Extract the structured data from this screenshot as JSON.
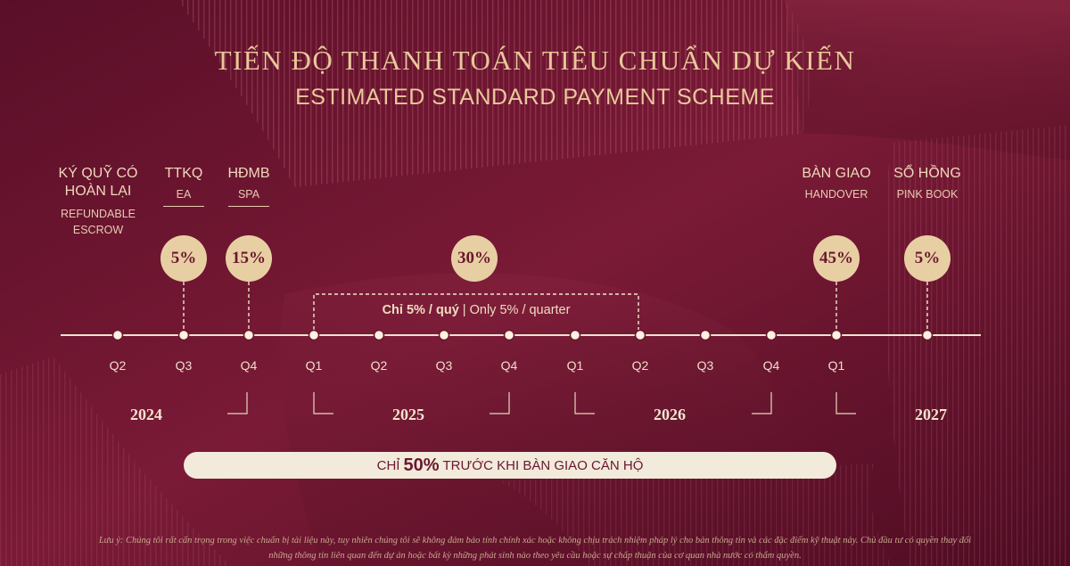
{
  "title": {
    "vi": "TIẾN ĐỘ THANH TOÁN TIÊU CHUẨN DỰ KIẾN",
    "en": "ESTIMATED STANDARD PAYMENT SCHEME"
  },
  "milestones": {
    "escrow": {
      "vi_line1": "KÝ QUỸ CÓ",
      "vi_line2": "HOÀN LẠI",
      "en_line1": "REFUNDABLE",
      "en_line2": "ESCROW"
    },
    "ttkq": {
      "vi": "TTKQ",
      "en": "EA",
      "pct": "5%"
    },
    "hdmb": {
      "vi": "HĐMB",
      "en": "SPA",
      "pct": "15%"
    },
    "quarterly": {
      "pct": "30%",
      "label_vi": "Chỉ 5% / quý",
      "label_sep": " | ",
      "label_en": "Only 5% / quarter"
    },
    "handover": {
      "vi": "BÀN GIAO",
      "en": "HANDOVER",
      "pct": "45%"
    },
    "pinkbook": {
      "vi": "SỔ HỒNG",
      "en": "PINK BOOK",
      "pct": "5%"
    }
  },
  "quarters": [
    "Q2",
    "Q3",
    "Q4",
    "Q1",
    "Q2",
    "Q3",
    "Q4",
    "Q1",
    "Q2",
    "Q3",
    "Q4",
    "Q1"
  ],
  "years": [
    "2024",
    "2025",
    "2026",
    "2027"
  ],
  "banner": {
    "prefix": "CHỈ",
    "highlight": "50%",
    "suffix": "TRƯỚC KHI BÀN GIAO CĂN HỘ"
  },
  "disclaimer": {
    "line1": "Lưu ý: Chúng tôi rất cẩn trọng trong việc chuẩn bị tài liệu này, tuy nhiên chúng tôi sẽ không đảm bảo tính chính xác hoặc không chịu trách nhiệm pháp lý cho bản thông tin và các đặc điểm kỹ thuật này. Chủ đầu tư có quyền thay đổi",
    "line2": "những thông tin liên quan đến dự án hoặc bất kỳ những phát sinh nào theo yêu cầu hoặc sự chấp thuận của cơ quan nhà nước có thẩm quyền."
  },
  "colors": {
    "background": "#6b1430",
    "gold": "#e8cfa3",
    "cream": "#f2eadb",
    "text_gold": "#e9c89b"
  }
}
